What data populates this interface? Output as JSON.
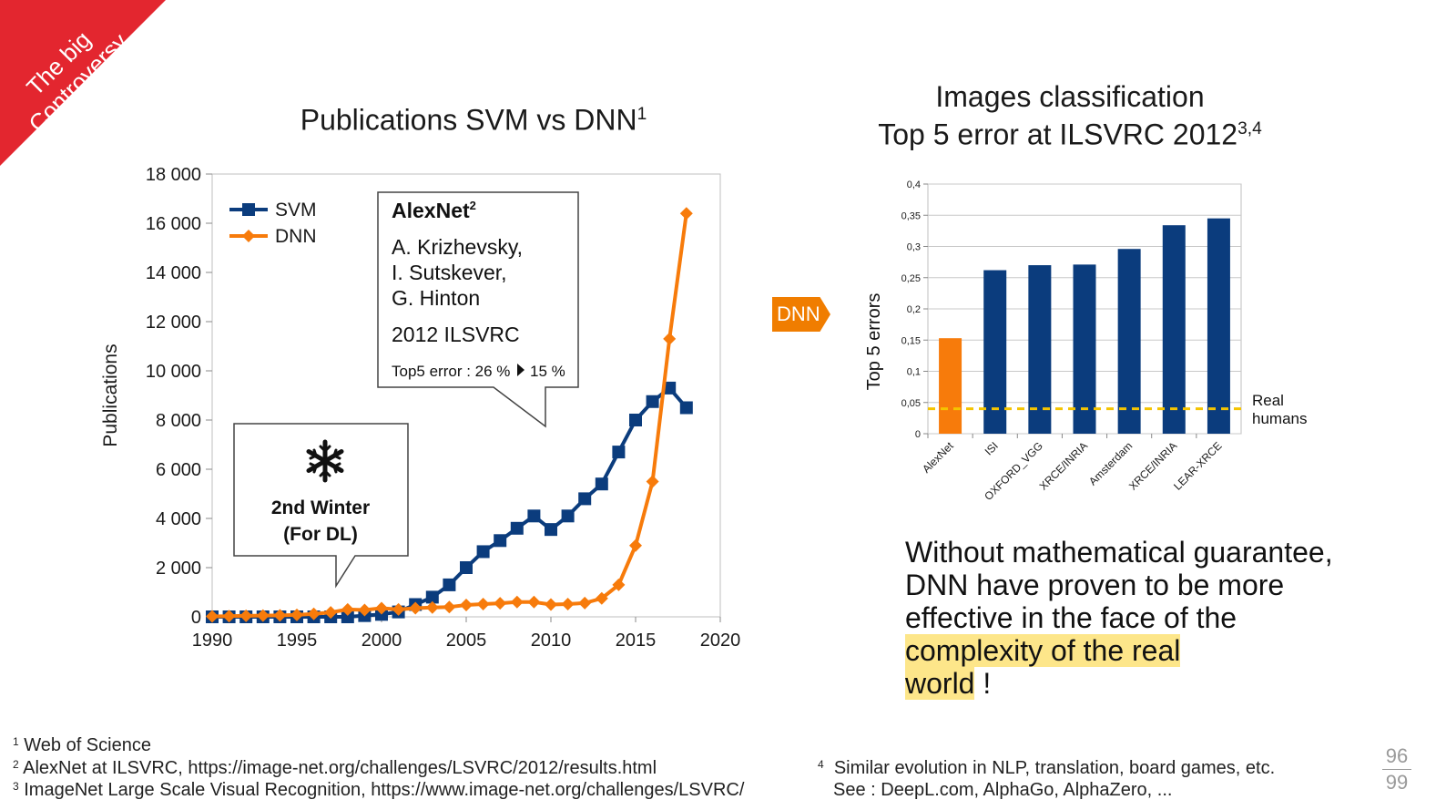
{
  "ribbon": {
    "line1": "The big",
    "line2": "Controversy"
  },
  "left_title": {
    "text": "Publications SVM vs DNN",
    "sup": "1"
  },
  "right_title": {
    "line1": "Images classification",
    "line2": "Top 5 error at ILSVRC 2012",
    "sup": "3,4"
  },
  "callout_alexnet": {
    "title": "AlexNet",
    "title_sup": "2",
    "authors": [
      "A. Krizhevsky,",
      "I. Sutskever,",
      "G. Hinton"
    ],
    "event": "2012 ILSVRC",
    "error_label": "Top5 error : 26 %",
    "error_after": "15 %"
  },
  "callout_winter": {
    "line1": "2nd Winter",
    "line2": "(For DL)",
    "icon": "snowflake-icon"
  },
  "dnn_arrow": "DNN",
  "conclusion": {
    "part1": "Without mathematical guarantee, DNN have proven to be more effective in the face of the ",
    "highlight1": "complexity of the real",
    "highlight2": "world",
    "part2": " !"
  },
  "footnotes": {
    "f1": {
      "num": "1",
      "text": "Web of Science"
    },
    "f2": {
      "num": "2",
      "text": "AlexNet at ILSVRC, https://image-net.org/challenges/LSVRC/2012/results.html"
    },
    "f3": {
      "num": "3",
      "text": "ImageNet Large Scale Visual Recognition, https://www.image-net.org/challenges/LSVRC/"
    },
    "f4": {
      "num": "4",
      "line1": "Similar evolution in NLP, translation,  board games, etc.",
      "line2": "See : DeepL.com, AlphaGo, AlphaZero, ..."
    }
  },
  "page": {
    "current": "96",
    "total": "99"
  },
  "colors": {
    "svm": "#0b3c7d",
    "dnn": "#f77b0b",
    "ribbon": "#e3262f",
    "humans": "#f5c400",
    "highlight": "#fde68a"
  },
  "chart_data": [
    {
      "type": "line",
      "title": "Publications SVM vs DNN",
      "xlabel": "",
      "ylabel": "Publications",
      "xlim": [
        1990,
        2020
      ],
      "ylim": [
        0,
        18000
      ],
      "xticks": [
        "1990",
        "1995",
        "2000",
        "2005",
        "2010",
        "2015",
        "2020"
      ],
      "yticks": [
        "0",
        "2 000",
        "4 000",
        "6 000",
        "8 000",
        "10 000",
        "12 000",
        "14 000",
        "16 000",
        "18 000"
      ],
      "x": [
        1990,
        1991,
        1992,
        1993,
        1994,
        1995,
        1996,
        1997,
        1998,
        1999,
        2000,
        2001,
        2002,
        2003,
        2004,
        2005,
        2006,
        2007,
        2008,
        2009,
        2010,
        2011,
        2012,
        2013,
        2014,
        2015,
        2016,
        2017,
        2018
      ],
      "series": [
        {
          "name": "SVM",
          "color": "#0b3c7d",
          "marker": "square",
          "values": [
            0,
            0,
            0,
            0,
            0,
            0,
            0,
            0,
            0,
            50,
            100,
            200,
            500,
            800,
            1300,
            2000,
            2650,
            3100,
            3600,
            4100,
            3550,
            4100,
            4800,
            5400,
            6700,
            8000,
            8750,
            9300,
            8500
          ]
        },
        {
          "name": "DNN",
          "color": "#f77b0b",
          "marker": "diamond",
          "values": [
            20,
            30,
            40,
            50,
            60,
            80,
            120,
            180,
            300,
            280,
            350,
            300,
            350,
            380,
            400,
            480,
            520,
            550,
            600,
            600,
            500,
            520,
            560,
            750,
            1300,
            2900,
            5500,
            11300,
            16400
          ]
        }
      ],
      "legend": "top-left",
      "grid": false
    },
    {
      "type": "bar",
      "title": "Images classification Top 5 error at ILSVRC 2012",
      "xlabel": "",
      "ylabel": "Top 5 errors",
      "ylim": [
        0,
        0.4
      ],
      "yticks": [
        "0",
        "0,05",
        "0,1",
        "0,15",
        "0,2",
        "0,25",
        "0,3",
        "0,35",
        "0,4"
      ],
      "categories": [
        "AlexNet",
        "ISI",
        "OXFORD_VGG",
        "XRCE/INRIA",
        "Amsterdam",
        "XRCE/INRIA",
        "LEAR-XRCE"
      ],
      "values": [
        0.153,
        0.262,
        0.27,
        0.271,
        0.296,
        0.334,
        0.345
      ],
      "bar_colors": [
        "#f77b0b",
        "#0b3c7d",
        "#0b3c7d",
        "#0b3c7d",
        "#0b3c7d",
        "#0b3c7d",
        "#0b3c7d"
      ],
      "reference_line": {
        "label_line1": "Real",
        "label_line2": "humans",
        "value": 0.04,
        "color": "#f5c400",
        "style": "dashed"
      },
      "grid": true
    }
  ]
}
